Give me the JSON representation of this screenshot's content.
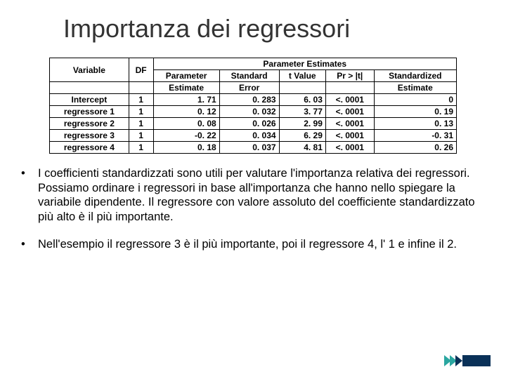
{
  "title": "Importanza dei regressori",
  "table": {
    "super_header": "Parameter Estimates",
    "headers": {
      "variable": "Variable",
      "df": "DF",
      "parameter": "Parameter",
      "standard": "Standard",
      "tvalue": "t Value",
      "pr": "Pr > |t|",
      "standardized": "Standardized"
    },
    "sub_headers": {
      "estimate": "Estimate",
      "error": "Error",
      "estimate2": "Estimate"
    },
    "rows": [
      {
        "variable": "Intercept",
        "df": "1",
        "param": "1. 71",
        "std": "0. 283",
        "t": "6. 03",
        "pr": "<. 0001",
        "stdz": "0"
      },
      {
        "variable": "regressore 1",
        "df": "1",
        "param": "0. 12",
        "std": "0. 032",
        "t": "3. 77",
        "pr": "<. 0001",
        "stdz": "0. 19"
      },
      {
        "variable": "regressore 2",
        "df": "1",
        "param": "0. 08",
        "std": "0. 026",
        "t": "2. 99",
        "pr": "<. 0001",
        "stdz": "0. 13"
      },
      {
        "variable": "regressore 3",
        "df": "1",
        "param": "-0. 22",
        "std": "0. 034",
        "t": "6. 29",
        "pr": "<. 0001",
        "stdz": "-0. 31"
      },
      {
        "variable": "regressore 4",
        "df": "1",
        "param": "0. 18",
        "std": "0. 037",
        "t": "4. 81",
        "pr": "<. 0001",
        "stdz": "0. 26"
      }
    ]
  },
  "bullets": [
    "I coefficienti standardizzati sono utili per valutare l'importanza relativa dei regressori. Possiamo ordinare i regressori in base all'importanza che hanno nello spiegare la variabile dipendente. Il regressore con valore assoluto del coefficiente standardizzato più alto è il più importante.",
    "Nell'esempio il regressore 3 è il più importante, poi il regressore 4, l' 1 e infine il 2."
  ],
  "decor_colors": {
    "teal": "#2aa6a0",
    "dark_blue": "#0a3158"
  }
}
